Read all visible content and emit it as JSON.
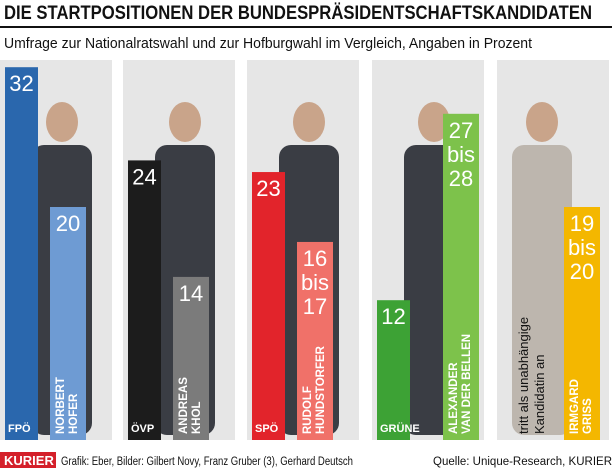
{
  "chart_data": {
    "type": "bar",
    "title": "DIE STARTPOSITIONEN DER BUNDESPRÄSIDENTSCHAFTSKANDIDATEN",
    "subtitle": "Umfrage zur Nationalratswahl und zur Hofburgwahl im Vergleich, Angaben in Prozent",
    "range_word": "bis",
    "panels": [
      {
        "party": "FPÖ",
        "party_value": 32,
        "party_color": "#2a67ad",
        "candidate": [
          "NORBERT",
          "HOFER"
        ],
        "values": [
          20
        ],
        "color": "#6e9bd3"
      },
      {
        "party": "ÖVP",
        "party_value": 24,
        "party_color": "#1c1c1c",
        "candidate": [
          "ANDREAS",
          "KHOL"
        ],
        "values": [
          14
        ],
        "color": "#7b7b7b"
      },
      {
        "party": "SPÖ",
        "party_value": 23,
        "party_color": "#e2242b",
        "candidate": [
          "RUDOLF",
          "HUNDSTORFER"
        ],
        "values": [
          16,
          17
        ],
        "color": "#f07169"
      },
      {
        "party": "GRÜNE",
        "party_value": 12,
        "party_color": "#3da235",
        "candidate": [
          "ALEXANDER",
          "VAN DER BELLEN"
        ],
        "values": [
          27,
          28
        ],
        "color": "#7dc24b"
      },
      {
        "note": [
          "tritt als unabhängige",
          "Kandidatin an"
        ],
        "candidate": [
          "IRMGARD",
          "GRISS"
        ],
        "values": [
          19,
          20
        ],
        "color": "#f4b700"
      }
    ],
    "brand": "KURIER",
    "credits": "Grafik: Eber, Bilder: Gilbert Novy, Franz Gruber (3), Gerhard Deutsch",
    "source": "Quelle: Unique-Research, KURIER"
  }
}
